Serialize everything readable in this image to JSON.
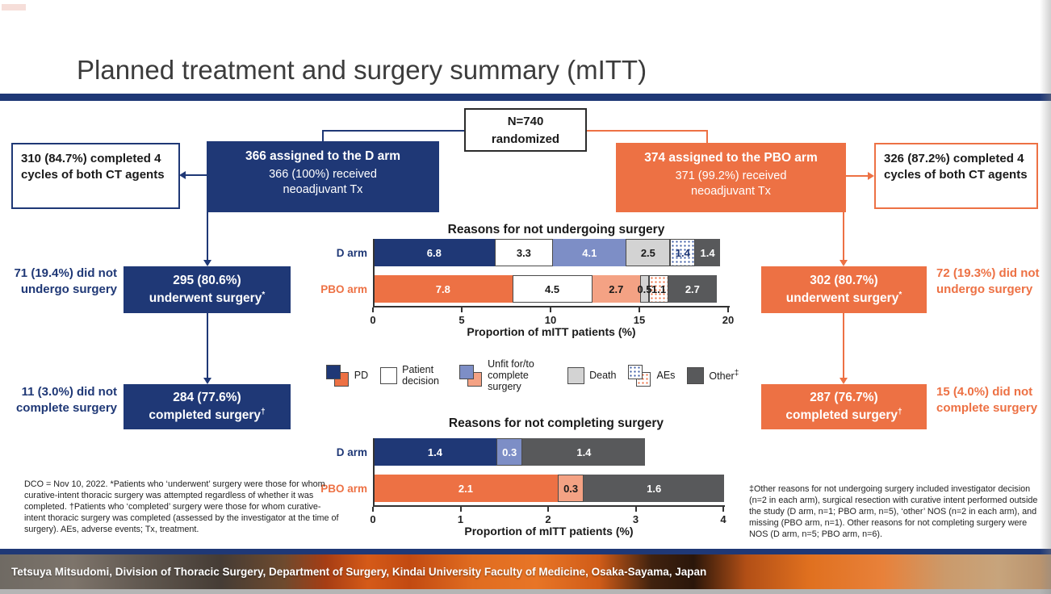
{
  "slide": {
    "title": "Planned treatment and surgery summary (mITT)",
    "credit": "Tetsuya Mitsudomi, Division of Thoracic Surgery, Department of Surgery, Kindai University Faculty of Medicine, Osaka-Sayama, Japan"
  },
  "colors": {
    "navy": "#1F3876",
    "orange": "#ED7144",
    "periwinkle": "#7D8EC6",
    "salmon": "#F4A284",
    "light_gray": "#D3D3D3",
    "dark_gray": "#58595B",
    "header_bar": "#1F3876"
  },
  "flow": {
    "n_box": {
      "line1": "N=740",
      "line2": "randomized"
    },
    "d_assign": {
      "line1": "366 assigned to the D arm",
      "line2": "366 (100%) received neoadjuvant Tx"
    },
    "pbo_assign": {
      "line1": "374 assigned to the PBO arm",
      "line2": "371 (99.2%) received neoadjuvant Tx"
    },
    "d_cycles": "310 (84.7%) completed 4 cycles of both CT agents",
    "pbo_cycles": "326 (87.2%) completed 4 cycles of both CT agents",
    "d_underwent": {
      "line1": "295 (80.6%)",
      "line2": "underwent surgery",
      "sup": "*"
    },
    "d_not_undergo": "71 (19.4%) did not undergo surgery",
    "d_completed": {
      "line1": "284 (77.6%)",
      "line2": "completed surgery",
      "sup": "†"
    },
    "d_not_complete": "11 (3.0%) did not complete surgery",
    "pbo_underwent": {
      "line1": "302 (80.7%)",
      "line2": "underwent surgery",
      "sup": "*"
    },
    "pbo_not_undergo": "72 (19.3%) did not undergo surgery",
    "pbo_completed": {
      "line1": "287 (76.7%)",
      "line2": "completed surgery",
      "sup": "†"
    },
    "pbo_not_complete": "15 (4.0%) did not complete surgery"
  },
  "legend": {
    "items": [
      {
        "label": "PD",
        "swatch": "dual",
        "colors": [
          "#1F3876",
          "#ED7144"
        ]
      },
      {
        "label": "Patient decision",
        "swatch": "single",
        "colors": [
          "#FFFFFF"
        ]
      },
      {
        "label": "Unfit for/to complete surgery",
        "swatch": "dual",
        "colors": [
          "#7D8EC6",
          "#F4A284"
        ]
      },
      {
        "label": "Death",
        "swatch": "single",
        "colors": [
          "#D3D3D3"
        ]
      },
      {
        "label": "AEs",
        "swatch": "dual-dot",
        "colors": [
          "#3B5BA5",
          "#ED7144"
        ]
      },
      {
        "label": "Other",
        "sup": "‡",
        "swatch": "single",
        "colors": [
          "#58595B"
        ]
      }
    ]
  },
  "chart_data": [
    {
      "type": "bar",
      "subtype": "stacked-horizontal",
      "title": "Reasons for not undergoing surgery",
      "xlabel": "Proportion of mITT patients (%)",
      "xlim": [
        0,
        20
      ],
      "xticks": [
        0,
        5,
        10,
        15,
        20
      ],
      "grid": false,
      "categories": [
        "D arm",
        "PBO arm"
      ],
      "category_colors": [
        "#1F3876",
        "#ED7144"
      ],
      "series": [
        {
          "name": "PD",
          "values": [
            6.8,
            7.8
          ],
          "bg": [
            "#1F3876",
            "#ED7144"
          ],
          "text": [
            "#FFFFFF",
            "#FFFFFF"
          ],
          "border": [
            false,
            false
          ]
        },
        {
          "name": "Patient decision",
          "values": [
            3.3,
            4.5
          ],
          "bg": [
            "#FFFFFF",
            "#FFFFFF"
          ],
          "text": [
            "#1A1A1A",
            "#1A1A1A"
          ],
          "border": [
            true,
            true
          ]
        },
        {
          "name": "Unfit for/to complete surgery",
          "values": [
            4.1,
            2.7
          ],
          "bg": [
            "#7D8EC6",
            "#F4A284"
          ],
          "text": [
            "#FFFFFF",
            "#1A1A1A"
          ],
          "border": [
            false,
            false
          ]
        },
        {
          "name": "Death",
          "values": [
            2.5,
            0.5
          ],
          "bg": [
            "#D3D3D3",
            "#D3D3D3"
          ],
          "text": [
            "#1A1A1A",
            "#1A1A1A"
          ],
          "border": [
            true,
            true
          ]
        },
        {
          "name": "AEs",
          "values": [
            1.4,
            1.1
          ],
          "bg": [
            "#FFFFFF",
            "#FFFFFF"
          ],
          "text": [
            "#1F3876",
            "#1A1A1A"
          ],
          "border": [
            true,
            true
          ],
          "dots": [
            "#3B5BA5",
            "#ED7144"
          ]
        },
        {
          "name": "Other",
          "values": [
            1.4,
            2.7
          ],
          "bg": [
            "#58595B",
            "#58595B"
          ],
          "text": [
            "#FFFFFF",
            "#FFFFFF"
          ],
          "border": [
            false,
            false
          ]
        }
      ]
    },
    {
      "type": "bar",
      "subtype": "stacked-horizontal",
      "title": "Reasons for not completing surgery",
      "xlabel": "Proportion of mITT patients (%)",
      "xlim": [
        0,
        4
      ],
      "xticks": [
        0,
        1,
        2,
        3,
        4
      ],
      "grid": false,
      "categories": [
        "D arm",
        "PBO arm"
      ],
      "category_colors": [
        "#1F3876",
        "#ED7144"
      ],
      "series": [
        {
          "name": "PD",
          "values": [
            1.4,
            2.1
          ],
          "bg": [
            "#1F3876",
            "#ED7144"
          ],
          "text": [
            "#FFFFFF",
            "#FFFFFF"
          ],
          "border": [
            false,
            false
          ]
        },
        {
          "name": "Unfit for/to complete surgery",
          "values": [
            0.3,
            0.3
          ],
          "bg": [
            "#7D8EC6",
            "#F4A284"
          ],
          "text": [
            "#FFFFFF",
            "#1A1A1A"
          ],
          "border": [
            true,
            true
          ]
        },
        {
          "name": "Other",
          "values": [
            1.4,
            1.6
          ],
          "bg": [
            "#58595B",
            "#58595B"
          ],
          "text": [
            "#FFFFFF",
            "#FFFFFF"
          ],
          "border": [
            false,
            false
          ]
        }
      ]
    }
  ],
  "footnotes": {
    "left": "DCO = Nov 10, 2022. *Patients who ‘underwent’ surgery were those for whom curative-intent thoracic surgery was attempted regardless of whether it was completed. †Patients who ‘completed’ surgery were those for whom curative-intent thoracic surgery was completed (assessed by the investigator at the time of surgery). AEs, adverse events; Tx, treatment.",
    "right": "‡Other reasons for not undergoing surgery included investigator decision (n=2 in each arm), surgical resection with curative intent performed outside the study (D arm, n=1; PBO arm, n=5), ‘other’ NOS (n=2 in each arm), and missing (PBO arm, n=1). Other reasons for not completing surgery were NOS (D arm, n=5; PBO arm, n=6)."
  }
}
